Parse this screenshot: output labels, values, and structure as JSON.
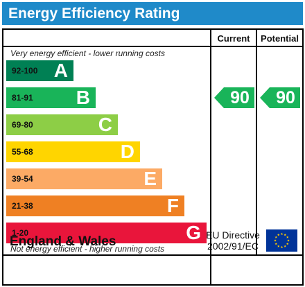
{
  "title": "Energy Efficiency Rating",
  "columns": {
    "current": "Current",
    "potential": "Potential"
  },
  "captions": {
    "top": "Very energy efficient - lower running costs",
    "bottom": "Not energy efficient - higher running costs"
  },
  "bands": [
    {
      "range": "92-100",
      "letter": "A",
      "color": "#008054"
    },
    {
      "range": "81-91",
      "letter": "B",
      "color": "#19b459"
    },
    {
      "range": "69-80",
      "letter": "C",
      "color": "#8dce46"
    },
    {
      "range": "55-68",
      "letter": "D",
      "color": "#ffd500"
    },
    {
      "range": "39-54",
      "letter": "E",
      "color": "#fcaa65"
    },
    {
      "range": "21-38",
      "letter": "F",
      "color": "#ef8023"
    },
    {
      "range": "1-20",
      "letter": "G",
      "color": "#e9153b"
    }
  ],
  "current_rating": {
    "value": "90",
    "band": "B",
    "color": "#19b459"
  },
  "potential_rating": {
    "value": "90",
    "band": "B",
    "color": "#19b459"
  },
  "footer": {
    "region": "England & Wales",
    "directive_line1": "EU Directive",
    "directive_line2": "2002/91/EC",
    "flag_icon": "eu-flag-icon",
    "flag_color": "#003399",
    "star_color": "#ffcc00"
  }
}
